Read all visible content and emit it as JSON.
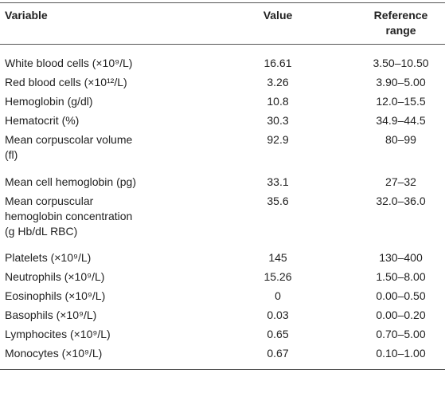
{
  "table": {
    "header": [
      [
        "Variable"
      ],
      [
        "Value"
      ],
      [
        "Reference",
        "range"
      ]
    ],
    "rows": [
      [
        [
          "White blood cells (×10⁹/L)"
        ],
        "16.61",
        "3.50–10.50"
      ],
      [
        [
          "Red blood cells (×10¹²/L)"
        ],
        "3.26",
        "3.90–5.00"
      ],
      [
        [
          "Hemoglobin (g/dl)"
        ],
        "10.8",
        "12.0–15.5"
      ],
      [
        [
          "Hematocrit (%)"
        ],
        "30.3",
        "34.9–44.5"
      ],
      [
        [
          "Mean corpuscolar volume",
          "(fl)"
        ],
        "92.9",
        "80–99"
      ],
      [
        [
          "Mean cell hemoglobin (pg)"
        ],
        "33.1",
        "27–32"
      ],
      [
        [
          "Mean corpuscular",
          "hemoglobin concentration",
          "(g Hb/dL RBC)"
        ],
        "35.6",
        "32.0–36.0"
      ],
      [
        [
          "Platelets (×10⁹/L)"
        ],
        "145",
        "130–400"
      ],
      [
        [
          "Neutrophils (×10⁹/L)"
        ],
        "15.26",
        "1.50–8.00"
      ],
      [
        [
          "Eosinophils (×10⁹/L)"
        ],
        "0",
        "0.00–0.50"
      ],
      [
        [
          "Basophils (×10⁹/L)"
        ],
        "0.03",
        "0.00–0.20"
      ],
      [
        [
          "Lymphocites (×10⁹/L)"
        ],
        "0.65",
        "0.70–5.00"
      ],
      [
        [
          "Monocytes (×10⁹/L)"
        ],
        "0.67",
        "0.10–1.00"
      ]
    ]
  }
}
